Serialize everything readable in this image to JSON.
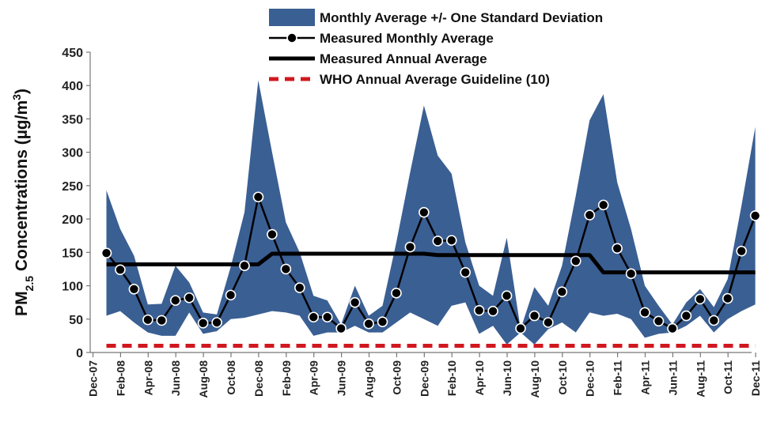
{
  "chart_data": {
    "type": "line",
    "title": "",
    "ylabel": {
      "main": "PM",
      "sub": "2.5",
      "rest": " Concentrations (µg/m",
      "sup": "3",
      "close": ")"
    },
    "xlabel": "",
    "ylim": [
      0,
      450
    ],
    "yticks": [
      0,
      50,
      100,
      150,
      200,
      250,
      300,
      350,
      400,
      450
    ],
    "grid": false,
    "legend_position": "top-right",
    "xtick_labels": [
      "Dec-07",
      "Feb-08",
      "Apr-08",
      "Jun-08",
      "Aug-08",
      "Oct-08",
      "Dec-08",
      "Feb-09",
      "Apr-09",
      "Jun-09",
      "Aug-09",
      "Oct-09",
      "Dec-09",
      "Feb-10",
      "Apr-10",
      "Jun-10",
      "Aug-10",
      "Oct-10",
      "Dec-10",
      "Feb-11",
      "Apr-11",
      "Jun-11",
      "Aug-11",
      "Oct-11",
      "Dec-11"
    ],
    "months": [
      "Jan-08",
      "Feb-08",
      "Mar-08",
      "Apr-08",
      "May-08",
      "Jun-08",
      "Jul-08",
      "Aug-08",
      "Sep-08",
      "Oct-08",
      "Nov-08",
      "Dec-08",
      "Jan-09",
      "Feb-09",
      "Mar-09",
      "Apr-09",
      "May-09",
      "Jun-09",
      "Jul-09",
      "Aug-09",
      "Sep-09",
      "Oct-09",
      "Nov-09",
      "Dec-09",
      "Jan-10",
      "Feb-10",
      "Mar-10",
      "Apr-10",
      "May-10",
      "Jun-10",
      "Jul-10",
      "Aug-10",
      "Sep-10",
      "Oct-10",
      "Nov-10",
      "Dec-10",
      "Jan-11",
      "Feb-11",
      "Mar-11",
      "Apr-11",
      "May-11",
      "Jun-11",
      "Jul-11",
      "Aug-11",
      "Sep-11",
      "Oct-11",
      "Nov-11",
      "Dec-11"
    ],
    "series": [
      {
        "name": "Monthly Average +/- One Standard Deviation",
        "kind": "band",
        "color": "#3a5f93",
        "upper": [
          243,
          185,
          145,
          72,
          73,
          130,
          105,
          60,
          57,
          128,
          210,
          408,
          300,
          195,
          150,
          85,
          78,
          42,
          100,
          55,
          70,
          165,
          270,
          370,
          295,
          268,
          165,
          100,
          85,
          172,
          35,
          98,
          70,
          130,
          235,
          348,
          387,
          255,
          185,
          100,
          70,
          42,
          75,
          95,
          68,
          110,
          220,
          338
        ],
        "lower": [
          55,
          62,
          45,
          30,
          25,
          25,
          60,
          28,
          32,
          50,
          52,
          57,
          62,
          60,
          55,
          25,
          30,
          30,
          40,
          30,
          30,
          45,
          60,
          50,
          40,
          70,
          75,
          28,
          40,
          12,
          30,
          12,
          35,
          45,
          30,
          60,
          55,
          58,
          50,
          22,
          28,
          30,
          40,
          55,
          30,
          50,
          62,
          72
        ]
      },
      {
        "name": "Measured Monthly Average",
        "kind": "line-markers",
        "color": "#000000",
        "values": [
          149,
          124,
          95,
          49,
          48,
          78,
          82,
          44,
          45,
          86,
          130,
          233,
          177,
          125,
          97,
          53,
          53,
          36,
          75,
          43,
          46,
          89,
          158,
          210,
          167,
          168,
          120,
          63,
          62,
          85,
          36,
          55,
          45,
          91,
          137,
          206,
          221,
          156,
          118,
          60,
          47,
          36,
          55,
          80,
          48,
          81,
          152,
          205
        ]
      },
      {
        "name": "Measured Annual Average",
        "kind": "step",
        "color": "#000000",
        "values": [
          132,
          132,
          132,
          132,
          132,
          132,
          132,
          132,
          132,
          132,
          132,
          132,
          148,
          148,
          148,
          148,
          148,
          148,
          148,
          148,
          148,
          148,
          148,
          148,
          146,
          146,
          146,
          146,
          146,
          146,
          146,
          146,
          146,
          146,
          146,
          146,
          120,
          120,
          120,
          120,
          120,
          120,
          120,
          120,
          120,
          120,
          120,
          120
        ]
      },
      {
        "name": "WHO Annual Average Guideline (10)",
        "kind": "dashed",
        "color": "#d0181e",
        "value": 10
      }
    ]
  }
}
